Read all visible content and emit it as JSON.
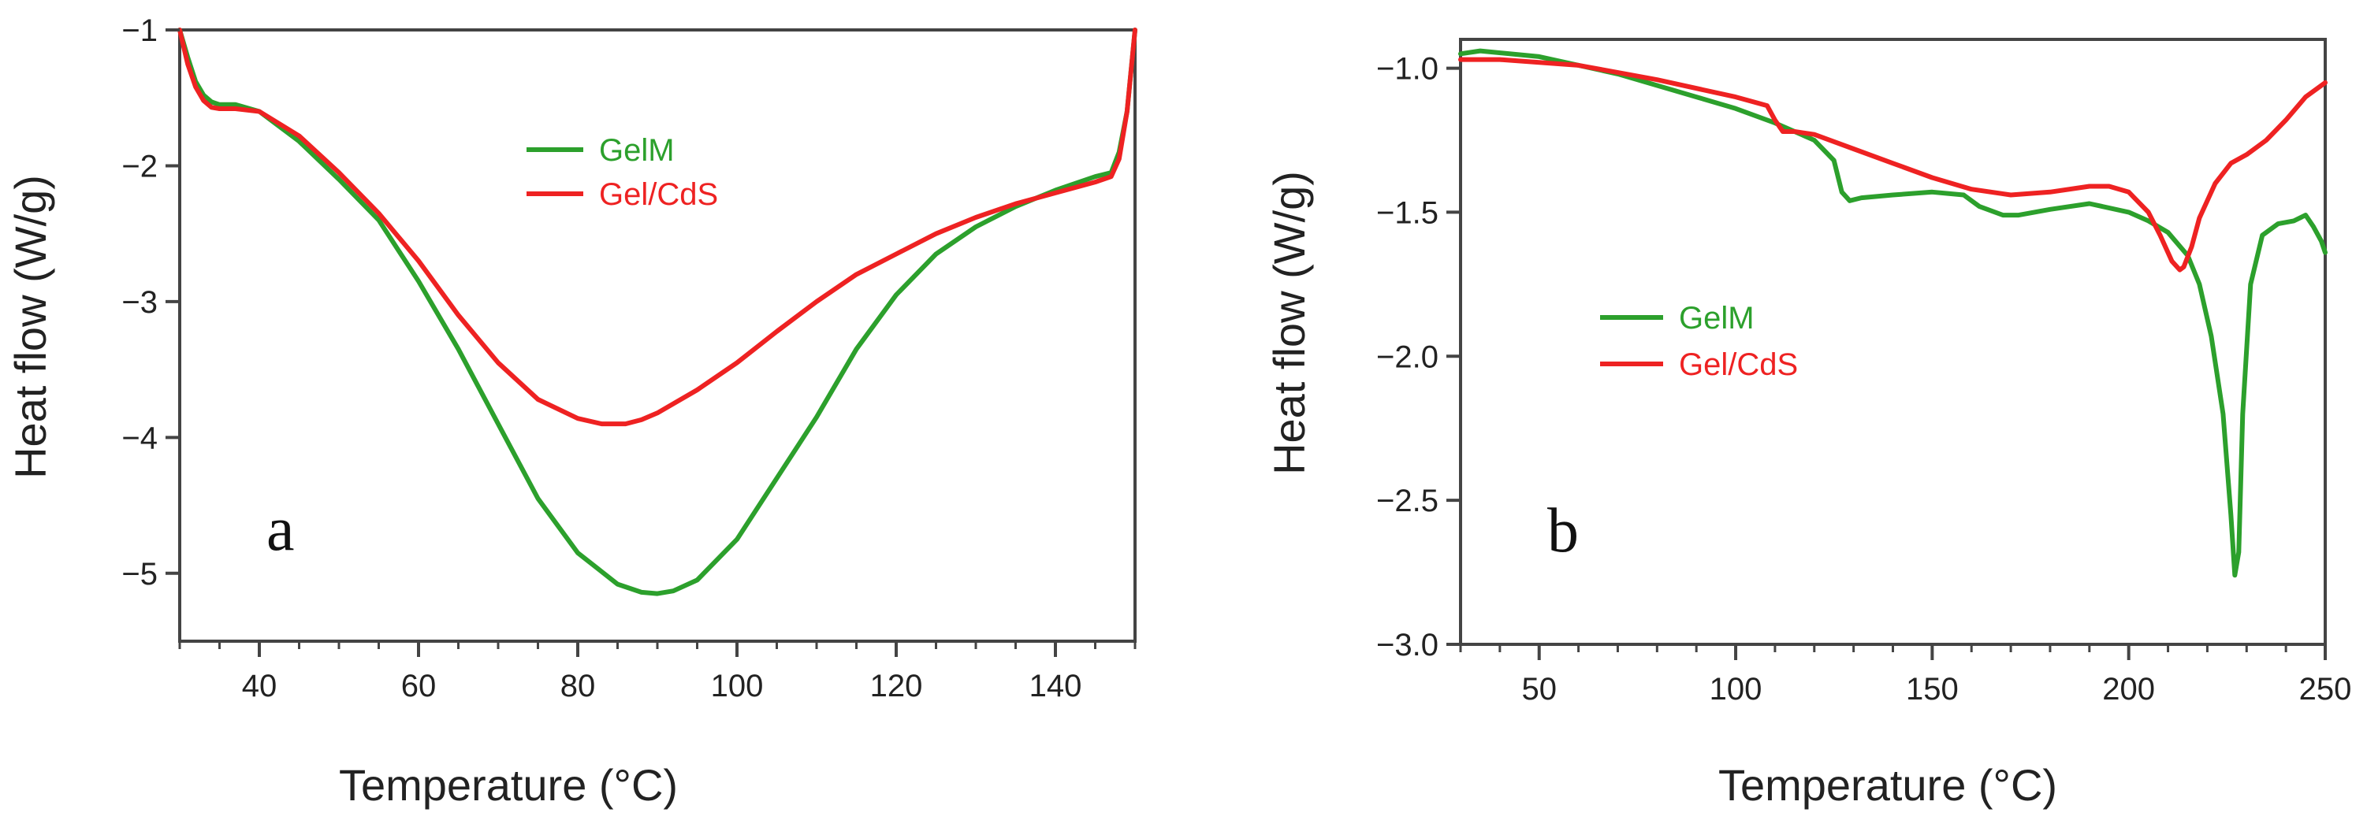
{
  "colors": {
    "GelM": "#2ca02c",
    "Gel/CdS": "#ee2222",
    "axis": "#444444"
  },
  "chart_data": [
    {
      "type": "line",
      "panel_label": "a",
      "xlabel": "Temperature (°C)",
      "ylabel": "Heat flow (W/g)",
      "xlim": [
        30,
        150
      ],
      "ylim": [
        -5.5,
        -1
      ],
      "xticks": [
        40,
        60,
        80,
        100,
        120,
        140
      ],
      "xtick_labels": [
        "40",
        "60",
        "80",
        "100",
        "120",
        "140"
      ],
      "yticks": [
        -1,
        -2,
        -3,
        -4,
        -5
      ],
      "ytick_labels": [
        "−1",
        "−2",
        "−3",
        "−4",
        "−5"
      ],
      "legend_position": "upper-center",
      "series": [
        {
          "name": "GelM",
          "color": "#2ca02c",
          "x": [
            30,
            31,
            32,
            33,
            34,
            35,
            37,
            40,
            45,
            50,
            55,
            60,
            65,
            70,
            75,
            80,
            85,
            88,
            90,
            92,
            95,
            100,
            105,
            110,
            115,
            120,
            125,
            130,
            135,
            140,
            145,
            147,
            148,
            149,
            150
          ],
          "y": [
            -1.0,
            -1.2,
            -1.38,
            -1.48,
            -1.53,
            -1.55,
            -1.55,
            -1.6,
            -1.82,
            -2.1,
            -2.4,
            -2.85,
            -3.35,
            -3.9,
            -4.45,
            -4.85,
            -5.08,
            -5.14,
            -5.15,
            -5.13,
            -5.05,
            -4.75,
            -4.3,
            -3.85,
            -3.35,
            -2.95,
            -2.65,
            -2.45,
            -2.3,
            -2.18,
            -2.08,
            -2.05,
            -1.9,
            -1.6,
            -1.0
          ]
        },
        {
          "name": "Gel/CdS",
          "color": "#ee2222",
          "x": [
            30,
            31,
            32,
            33,
            34,
            35,
            37,
            40,
            45,
            50,
            55,
            60,
            65,
            70,
            75,
            80,
            83,
            86,
            88,
            90,
            95,
            100,
            105,
            110,
            115,
            120,
            125,
            130,
            135,
            140,
            145,
            147,
            148,
            149,
            150
          ],
          "y": [
            -1.0,
            -1.25,
            -1.42,
            -1.52,
            -1.57,
            -1.58,
            -1.58,
            -1.6,
            -1.78,
            -2.05,
            -2.35,
            -2.7,
            -3.1,
            -3.45,
            -3.72,
            -3.86,
            -3.9,
            -3.9,
            -3.87,
            -3.82,
            -3.65,
            -3.45,
            -3.22,
            -3.0,
            -2.8,
            -2.65,
            -2.5,
            -2.38,
            -2.28,
            -2.2,
            -2.12,
            -2.08,
            -1.95,
            -1.6,
            -1.0
          ]
        }
      ]
    },
    {
      "type": "line",
      "panel_label": "b",
      "xlabel": "Temperature (°C)",
      "ylabel": "Heat flow (W/g)",
      "xlim": [
        30,
        250
      ],
      "ylim": [
        -3.0,
        -0.9
      ],
      "xticks": [
        50,
        100,
        150,
        200,
        250
      ],
      "xtick_labels": [
        "50",
        "100",
        "150",
        "200",
        "250"
      ],
      "yticks": [
        -1.0,
        -1.5,
        -2.0,
        -2.5,
        -3.0
      ],
      "ytick_labels": [
        "−1.0",
        "−1.5",
        "−2.0",
        "−2.5",
        "−3.0"
      ],
      "legend_position": "center-left",
      "series": [
        {
          "name": "GelM",
          "color": "#2ca02c",
          "x": [
            30,
            35,
            50,
            70,
            90,
            100,
            110,
            115,
            120,
            125,
            127,
            129,
            132,
            140,
            150,
            158,
            162,
            168,
            172,
            180,
            190,
            200,
            205,
            210,
            215,
            218,
            221,
            224,
            226,
            227,
            228,
            229,
            231,
            234,
            238,
            242,
            245,
            247,
            249,
            250
          ],
          "y": [
            -0.95,
            -0.94,
            -0.96,
            -1.02,
            -1.1,
            -1.14,
            -1.19,
            -1.22,
            -1.25,
            -1.32,
            -1.43,
            -1.46,
            -1.45,
            -1.44,
            -1.43,
            -1.44,
            -1.48,
            -1.51,
            -1.51,
            -1.49,
            -1.47,
            -1.5,
            -1.53,
            -1.57,
            -1.65,
            -1.75,
            -1.93,
            -2.2,
            -2.55,
            -2.76,
            -2.68,
            -2.2,
            -1.75,
            -1.58,
            -1.54,
            -1.53,
            -1.51,
            -1.55,
            -1.6,
            -1.64
          ]
        },
        {
          "name": "Gel/CdS",
          "color": "#ee2222",
          "x": [
            30,
            40,
            60,
            80,
            100,
            108,
            110,
            112,
            115,
            120,
            130,
            140,
            150,
            160,
            170,
            180,
            190,
            195,
            200,
            205,
            208,
            211,
            213,
            214,
            216,
            218,
            222,
            226,
            230,
            235,
            240,
            245,
            250
          ],
          "y": [
            -0.97,
            -0.97,
            -0.99,
            -1.04,
            -1.1,
            -1.13,
            -1.18,
            -1.22,
            -1.22,
            -1.23,
            -1.28,
            -1.33,
            -1.38,
            -1.42,
            -1.44,
            -1.43,
            -1.41,
            -1.41,
            -1.43,
            -1.5,
            -1.58,
            -1.67,
            -1.7,
            -1.69,
            -1.62,
            -1.52,
            -1.4,
            -1.33,
            -1.3,
            -1.25,
            -1.18,
            -1.1,
            -1.05
          ]
        }
      ]
    }
  ]
}
